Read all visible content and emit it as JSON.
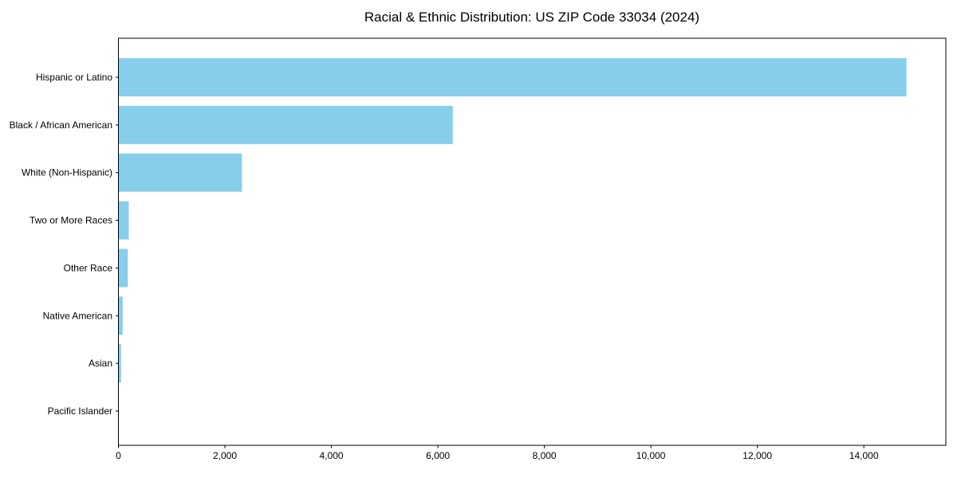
{
  "chart_data": {
    "type": "bar",
    "orientation": "horizontal",
    "title": "Racial & Ethnic Distribution: US ZIP Code 33034 (2024)",
    "categories": [
      "Hispanic or Latino",
      "Black / African American",
      "White (Non-Hispanic)",
      "Two or More Races",
      "Other Race",
      "Native American",
      "Asian",
      "Pacific Islander"
    ],
    "values": [
      14800,
      6280,
      2320,
      195,
      175,
      80,
      50,
      0
    ],
    "xlabel": "",
    "ylabel": "",
    "xlim": [
      0,
      15540
    ],
    "x_ticks": [
      0,
      2000,
      4000,
      6000,
      8000,
      10000,
      12000,
      14000
    ],
    "x_tick_labels": [
      "0",
      "2,000",
      "4,000",
      "6,000",
      "8,000",
      "10,000",
      "12,000",
      "14,000"
    ],
    "bar_color": "#87CEEB",
    "frame_color": "#000000",
    "text_color": "#000000",
    "grid": false,
    "legend": null,
    "category_order": "largest at top, y-axis inverted"
  }
}
